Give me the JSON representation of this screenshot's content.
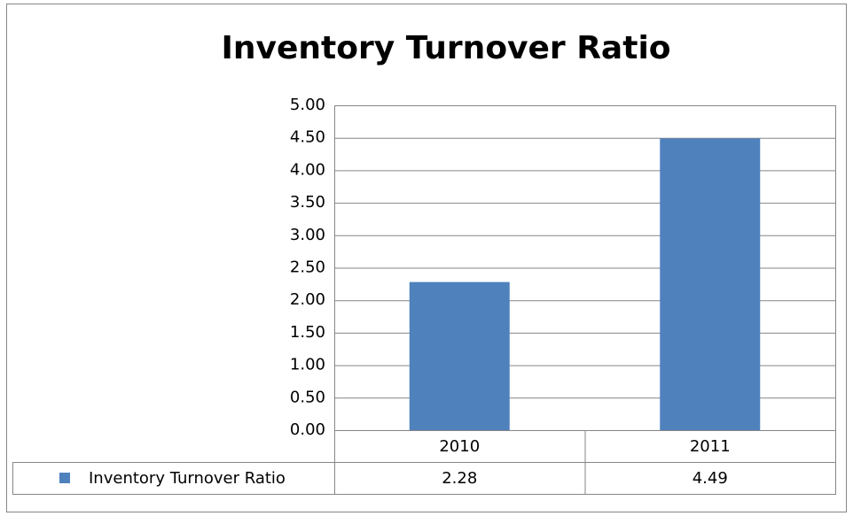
{
  "chart_data": {
    "type": "bar",
    "title": "Inventory Turnover Ratio",
    "categories": [
      "2010",
      "2011"
    ],
    "series": [
      {
        "name": "Inventory Turnover Ratio",
        "color": "#4f81bd",
        "values": [
          2.28,
          4.49
        ]
      }
    ],
    "ylim": [
      0,
      5
    ],
    "yticks": [
      {
        "value": 0,
        "label": "0.00"
      },
      {
        "value": 0.5,
        "label": "0.50"
      },
      {
        "value": 1,
        "label": "1.00"
      },
      {
        "value": 1.5,
        "label": "1.50"
      },
      {
        "value": 2,
        "label": "2.00"
      },
      {
        "value": 2.5,
        "label": "2.50"
      },
      {
        "value": 3,
        "label": "3.00"
      },
      {
        "value": 3.5,
        "label": "3.50"
      },
      {
        "value": 4,
        "label": "4.00"
      },
      {
        "value": 4.5,
        "label": "4.50"
      },
      {
        "value": 5,
        "label": "5.00"
      }
    ],
    "grid": true,
    "data_table": true
  }
}
